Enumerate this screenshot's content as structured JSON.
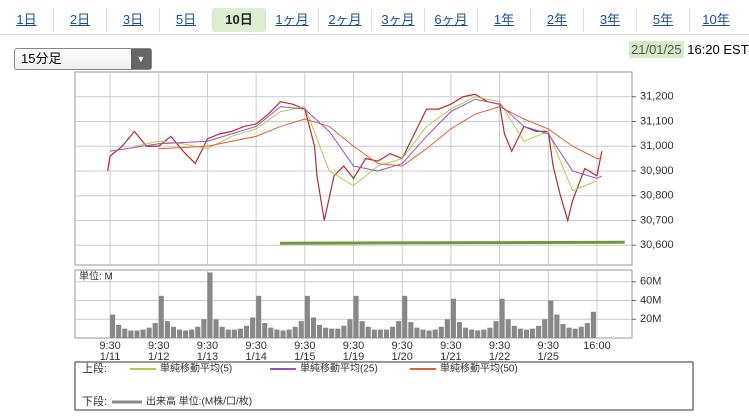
{
  "tabs": [
    "1日",
    "2日",
    "3日",
    "5日",
    "10日",
    "1ヶ月",
    "2ヶ月",
    "3ヶ月",
    "6ヶ月",
    "1年",
    "2年",
    "3年",
    "5年",
    "10年"
  ],
  "interval_select": "15分足",
  "timestamp": {
    "date": "21/01/25",
    "time": "16:20 EST"
  },
  "legend": {
    "upper_label": "上段:",
    "lower_label": "下段:"
  },
  "chart_data": [
    {
      "type": "line",
      "xlim": [
        -0.72,
        10.72
      ],
      "xticks": [
        0,
        1,
        2,
        3,
        4,
        5,
        6,
        7,
        8,
        9,
        10
      ],
      "ylim": [
        30520,
        31300
      ],
      "yticks": [
        {
          "value": 30600,
          "label": "30,600"
        },
        {
          "value": 30700,
          "label": "30,700"
        },
        {
          "value": 30800,
          "label": "30,800"
        },
        {
          "value": 30900,
          "label": "30,900"
        },
        {
          "value": 31000,
          "label": "31,000"
        },
        {
          "value": 31100,
          "label": "31,100"
        },
        {
          "value": 31200,
          "label": "31,200"
        }
      ],
      "grid": true,
      "series": [
        {
          "color": "#b03030",
          "width": 1.2,
          "x": [
            -0.05,
            0,
            0.25,
            0.5,
            0.75,
            1,
            1.25,
            1.5,
            1.75,
            2,
            2.25,
            2.5,
            2.75,
            3,
            3.25,
            3.5,
            3.75,
            4,
            4.2,
            4.25,
            4.4,
            4.6,
            4.8,
            5,
            5.25,
            5.5,
            5.75,
            6,
            6.25,
            6.5,
            6.75,
            7,
            7.25,
            7.5,
            7.75,
            8,
            8.1,
            8.25,
            8.5,
            8.75,
            9,
            9.1,
            9.25,
            9.4,
            9.5,
            9.75,
            10,
            10.1
          ],
          "values": [
            30900,
            30960,
            31000,
            31060,
            31000,
            31000,
            31040,
            30980,
            30930,
            31030,
            31050,
            31060,
            31080,
            31090,
            31130,
            31180,
            31170,
            31150,
            31000,
            30880,
            30700,
            30880,
            30920,
            30870,
            30950,
            30940,
            30970,
            30950,
            31050,
            31150,
            31150,
            31170,
            31200,
            31210,
            31180,
            31170,
            31050,
            30980,
            31080,
            31060,
            31060,
            30920,
            30800,
            30700,
            30780,
            30910,
            30880,
            30980
          ]
        },
        {
          "name": "単純移動平均(5)",
          "color": "#b5c94a",
          "width": 1,
          "x": [
            0.5,
            1,
            1.5,
            2,
            2.5,
            3,
            3.5,
            4,
            4.5,
            5,
            5.5,
            6,
            6.5,
            7,
            7.5,
            8,
            8.5,
            9,
            9.5,
            10
          ],
          "values": [
            31000,
            31020,
            31010,
            30990,
            31040,
            31070,
            31140,
            31160,
            30900,
            30840,
            30920,
            30950,
            31080,
            31150,
            31200,
            31180,
            31020,
            31060,
            30820,
            30860
          ]
        },
        {
          "name": "単純移動平均(25)",
          "color": "#9b4fc4",
          "width": 1,
          "x": [
            0,
            1,
            2,
            3,
            3.5,
            4,
            4.5,
            5,
            5.5,
            6,
            6.5,
            7,
            7.5,
            8,
            8.5,
            9,
            9.5,
            10,
            10.1
          ],
          "values": [
            30980,
            31010,
            31020,
            31080,
            31160,
            31150,
            31060,
            30920,
            30900,
            30930,
            31040,
            31140,
            31190,
            31170,
            31080,
            31050,
            30900,
            30870,
            30880
          ]
        },
        {
          "name": "単純移動平均(50)",
          "color": "#e0603a",
          "width": 1,
          "x": [
            1,
            2,
            3,
            3.5,
            4,
            4.5,
            5,
            5.5,
            6,
            6.5,
            7,
            7.5,
            8,
            8.5,
            9,
            9.5,
            10,
            10.1
          ],
          "values": [
            30990,
            31000,
            31040,
            31080,
            31110,
            31080,
            31000,
            30930,
            30920,
            30990,
            31070,
            31130,
            31160,
            31110,
            31070,
            31000,
            30950,
            30950
          ]
        }
      ],
      "trend_line": {
        "x": [
          3.49,
          10.57
        ],
        "values": [
          30608,
          30612
        ],
        "color": "#6e9a3c"
      }
    },
    {
      "type": "bar",
      "ylabel": "単位: M",
      "xlim": [
        -0.72,
        10.72
      ],
      "xticks": [
        {
          "value": 0,
          "label": "9:30"
        },
        {
          "value": 1,
          "label": "9:30"
        },
        {
          "value": 2,
          "label": "9:30"
        },
        {
          "value": 3,
          "label": "9:30"
        },
        {
          "value": 4,
          "label": "9:30"
        },
        {
          "value": 5,
          "label": "9:30"
        },
        {
          "value": 6,
          "label": "9:30"
        },
        {
          "value": 7,
          "label": "9:30"
        },
        {
          "value": 8,
          "label": "9:30"
        },
        {
          "value": 9,
          "label": "9:30"
        },
        {
          "value": 10,
          "label": "16:00"
        }
      ],
      "x_dates": [
        "1/11",
        "1/12",
        "1/13",
        "1/14",
        "1/15",
        "1/19",
        "1/20",
        "1/21",
        "1/22",
        "1/25"
      ],
      "ylim": [
        0,
        72.6
      ],
      "yticks": [
        {
          "value": 20,
          "label": "20M"
        },
        {
          "value": 40,
          "label": "40M"
        },
        {
          "value": 60,
          "label": "60M"
        }
      ],
      "grid": true,
      "series": [
        {
          "name": "出来高 単位:(M株/口/枚)",
          "color": "#888888",
          "x": [
            0,
            0.125,
            0.25,
            0.375,
            0.5,
            0.625,
            0.75,
            0.875,
            1,
            1.125,
            1.25,
            1.375,
            1.5,
            1.625,
            1.75,
            1.875,
            2,
            2.125,
            2.25,
            2.375,
            2.5,
            2.625,
            2.75,
            2.875,
            3,
            3.125,
            3.25,
            3.375,
            3.5,
            3.625,
            3.75,
            3.875,
            4,
            4.125,
            4.25,
            4.375,
            4.5,
            4.625,
            4.75,
            4.875,
            5,
            5.125,
            5.25,
            5.375,
            5.5,
            5.625,
            5.75,
            5.875,
            6,
            6.125,
            6.25,
            6.375,
            6.5,
            6.625,
            6.75,
            6.875,
            7,
            7.125,
            7.25,
            7.375,
            7.5,
            7.625,
            7.75,
            7.875,
            8,
            8.125,
            8.25,
            8.375,
            8.5,
            8.625,
            8.75,
            8.875,
            9,
            9.125,
            9.25,
            9.375,
            9.5,
            9.625,
            9.75,
            9.875
          ],
          "values": [
            25,
            14,
            10,
            8,
            8,
            9,
            11,
            16,
            45,
            18,
            12,
            9,
            8,
            9,
            12,
            20,
            70,
            20,
            12,
            9,
            9,
            10,
            13,
            22,
            45,
            16,
            11,
            9,
            8,
            9,
            12,
            18,
            45,
            22,
            14,
            11,
            10,
            10,
            13,
            20,
            45,
            18,
            12,
            9,
            9,
            9,
            12,
            18,
            45,
            17,
            11,
            9,
            8,
            9,
            12,
            20,
            42,
            17,
            11,
            9,
            8,
            9,
            11,
            18,
            42,
            20,
            13,
            10,
            9,
            10,
            13,
            20,
            40,
            25,
            15,
            11,
            10,
            12,
            16,
            28
          ]
        }
      ]
    }
  ]
}
